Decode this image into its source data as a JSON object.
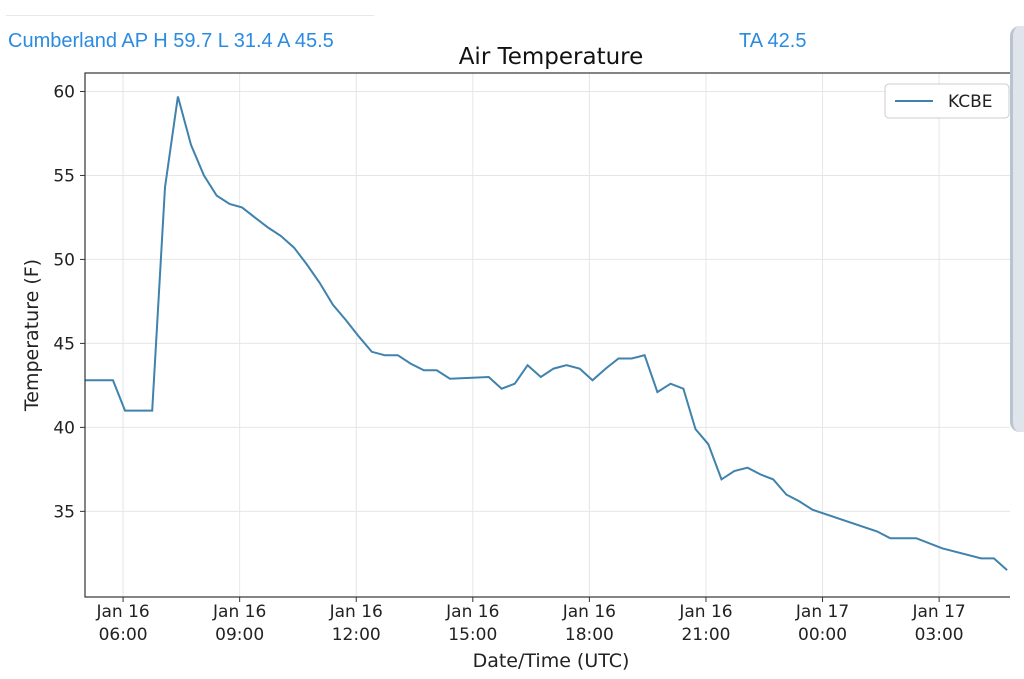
{
  "header": {
    "station_summary": "Cumberland AP H 59.7 L 31.4 A 45.5",
    "ta": "TA 42.5"
  },
  "colors": {
    "line": "#3f82ad",
    "header_text": "#2a8be0"
  },
  "chart_data": {
    "type": "line",
    "title": "Air Temperature",
    "xlabel": "Date/Time (UTC)",
    "ylabel": "Temperature (F)",
    "x_units": "hours since Jan 16 00:00 UTC",
    "xlim": [
      5.02,
      29.03
    ],
    "ylim": [
      29.9,
      61.1
    ],
    "grid": true,
    "legend_position": "top-right",
    "yticks": [
      35,
      40,
      45,
      50,
      55,
      60
    ],
    "xticks": [
      {
        "value": 6,
        "label1": "Jan 16",
        "label2": "06:00"
      },
      {
        "value": 9,
        "label1": "Jan 16",
        "label2": "09:00"
      },
      {
        "value": 12,
        "label1": "Jan 16",
        "label2": "12:00"
      },
      {
        "value": 15,
        "label1": "Jan 16",
        "label2": "15:00"
      },
      {
        "value": 18,
        "label1": "Jan 16",
        "label2": "18:00"
      },
      {
        "value": 21,
        "label1": "Jan 16",
        "label2": "21:00"
      },
      {
        "value": 24,
        "label1": "Jan 17",
        "label2": "00:00"
      },
      {
        "value": 27,
        "label1": "Jan 17",
        "label2": "03:00"
      }
    ],
    "series": [
      {
        "name": "KCBE",
        "x": [
          5.02,
          5.74,
          6.05,
          6.75,
          7.08,
          7.41,
          7.75,
          8.08,
          8.41,
          8.74,
          9.06,
          9.39,
          9.73,
          10.06,
          10.4,
          10.73,
          11.06,
          11.4,
          11.73,
          12.07,
          12.4,
          12.73,
          13.07,
          13.4,
          13.74,
          14.07,
          14.41,
          15.41,
          15.74,
          16.08,
          16.41,
          16.75,
          17.08,
          17.41,
          17.75,
          18.08,
          18.42,
          18.75,
          19.09,
          19.42,
          19.75,
          20.09,
          20.42,
          20.73,
          21.06,
          21.4,
          21.73,
          22.07,
          22.4,
          22.73,
          23.07,
          23.4,
          23.74,
          25.41,
          25.74,
          26.41,
          27.08,
          28.08,
          28.41,
          28.75
        ],
        "y": [
          42.8,
          42.8,
          41.0,
          41.0,
          54.3,
          59.7,
          56.8,
          55.0,
          53.8,
          53.3,
          53.1,
          52.5,
          51.9,
          51.4,
          50.7,
          49.7,
          48.6,
          47.3,
          46.4,
          45.4,
          44.5,
          44.3,
          44.3,
          43.8,
          43.4,
          43.4,
          42.9,
          43.0,
          42.3,
          42.6,
          43.7,
          43.0,
          43.5,
          43.7,
          43.5,
          42.8,
          43.5,
          44.1,
          44.1,
          44.3,
          42.1,
          42.6,
          42.3,
          39.9,
          39.0,
          36.9,
          37.4,
          37.6,
          37.2,
          36.9,
          36.0,
          35.6,
          35.1,
          33.8,
          33.4,
          33.4,
          32.8,
          32.2,
          32.2,
          31.5
        ]
      }
    ]
  }
}
